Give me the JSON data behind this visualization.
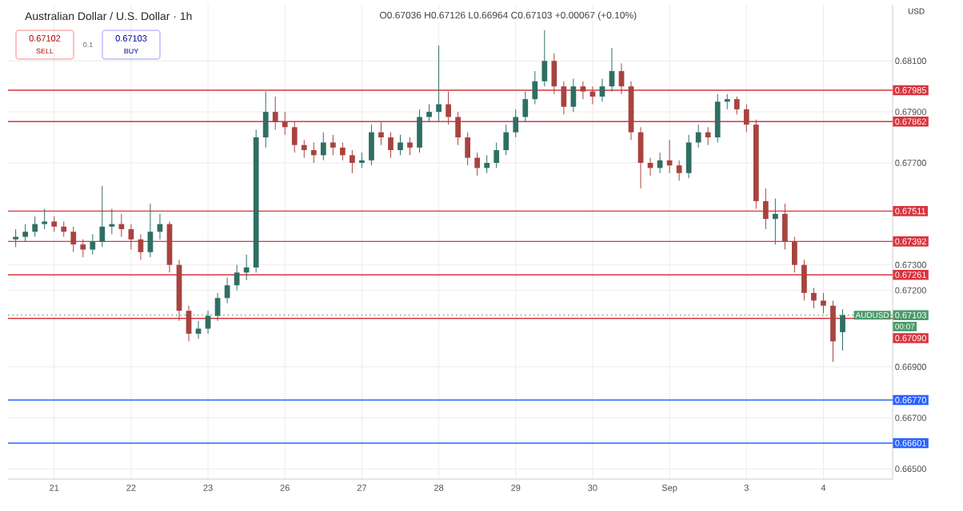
{
  "chart_data": {
    "type": "candlestick",
    "title": "Australian Dollar / U.S. Dollar · 1h",
    "annotations": [
      "O0.67036 H0.67126 L0.66964 C0.67103 +0.00067 (+0.10%)",
      "0.67102",
      "SELL",
      "0.1",
      "0.67103",
      "BUY",
      "USD",
      "AUDUSD",
      "00:07"
    ],
    "categories": [
      null,
      null,
      null,
      null,
      "21",
      null,
      null,
      null,
      null,
      null,
      null,
      null,
      "22",
      null,
      null,
      null,
      null,
      null,
      null,
      null,
      "23",
      null,
      null,
      null,
      null,
      null,
      null,
      null,
      "26",
      null,
      null,
      null,
      null,
      null,
      null,
      null,
      "27",
      null,
      null,
      null,
      null,
      null,
      null,
      null,
      "28",
      null,
      null,
      null,
      null,
      null,
      null,
      null,
      "29",
      null,
      null,
      null,
      null,
      null,
      null,
      null,
      "30",
      null,
      null,
      null,
      null,
      null,
      null,
      null,
      "Sep",
      null,
      null,
      null,
      null,
      null,
      null,
      null,
      "3",
      null,
      null,
      null,
      null,
      null,
      null,
      null,
      "4",
      null,
      null
    ],
    "ohlc": [
      [
        0.674,
        0.6744,
        0.6737,
        0.6741
      ],
      [
        0.6741,
        0.6746,
        0.6739,
        0.6743
      ],
      [
        0.6743,
        0.6749,
        0.6741,
        0.6746
      ],
      [
        0.6746,
        0.6752,
        0.6744,
        0.6747
      ],
      [
        0.6747,
        0.6749,
        0.6743,
        0.6745
      ],
      [
        0.6745,
        0.6747,
        0.6741,
        0.6743
      ],
      [
        0.6743,
        0.6745,
        0.6735,
        0.6738
      ],
      [
        0.6738,
        0.674,
        0.6733,
        0.6736
      ],
      [
        0.6736,
        0.6742,
        0.6734,
        0.6739
      ],
      [
        0.6739,
        0.6761,
        0.6737,
        0.6745
      ],
      [
        0.6745,
        0.6752,
        0.6742,
        0.6746
      ],
      [
        0.6746,
        0.675,
        0.6741,
        0.6744
      ],
      [
        0.6744,
        0.6746,
        0.6736,
        0.674
      ],
      [
        0.674,
        0.6742,
        0.6732,
        0.6735
      ],
      [
        0.6735,
        0.6754,
        0.6733,
        0.6743
      ],
      [
        0.6743,
        0.675,
        0.674,
        0.6746
      ],
      [
        0.6746,
        0.6747,
        0.6727,
        0.673
      ],
      [
        0.673,
        0.6732,
        0.6708,
        0.6712
      ],
      [
        0.6712,
        0.6714,
        0.67,
        0.6703
      ],
      [
        0.6703,
        0.6708,
        0.6701,
        0.6705
      ],
      [
        0.6705,
        0.6712,
        0.6703,
        0.671
      ],
      [
        0.671,
        0.6719,
        0.6708,
        0.6717
      ],
      [
        0.6717,
        0.6725,
        0.6715,
        0.6722
      ],
      [
        0.6722,
        0.673,
        0.672,
        0.6727
      ],
      [
        0.6727,
        0.6734,
        0.6724,
        0.6729
      ],
      [
        0.6729,
        0.6783,
        0.6727,
        0.678
      ],
      [
        0.678,
        0.6798,
        0.6776,
        0.679
      ],
      [
        0.679,
        0.6796,
        0.6783,
        0.6786
      ],
      [
        0.6786,
        0.679,
        0.6781,
        0.6784
      ],
      [
        0.6784,
        0.6786,
        0.6774,
        0.6777
      ],
      [
        0.6777,
        0.6779,
        0.6772,
        0.6775
      ],
      [
        0.6775,
        0.6778,
        0.677,
        0.6773
      ],
      [
        0.6773,
        0.6782,
        0.6771,
        0.6778
      ],
      [
        0.6778,
        0.6781,
        0.6773,
        0.6776
      ],
      [
        0.6776,
        0.6778,
        0.6771,
        0.6773
      ],
      [
        0.6773,
        0.6775,
        0.6766,
        0.677
      ],
      [
        0.677,
        0.6774,
        0.6768,
        0.6771
      ],
      [
        0.6771,
        0.6785,
        0.6769,
        0.6782
      ],
      [
        0.6782,
        0.6786,
        0.6777,
        0.678
      ],
      [
        0.678,
        0.6782,
        0.6772,
        0.6775
      ],
      [
        0.6775,
        0.6781,
        0.6773,
        0.6778
      ],
      [
        0.6778,
        0.678,
        0.6773,
        0.6776
      ],
      [
        0.6776,
        0.6791,
        0.6774,
        0.6788
      ],
      [
        0.6788,
        0.6793,
        0.6786,
        0.679
      ],
      [
        0.679,
        0.6816,
        0.6786,
        0.6793
      ],
      [
        0.6793,
        0.6798,
        0.6785,
        0.6788
      ],
      [
        0.6788,
        0.679,
        0.6777,
        0.678
      ],
      [
        0.678,
        0.6782,
        0.6769,
        0.6772
      ],
      [
        0.6772,
        0.6774,
        0.6765,
        0.6768
      ],
      [
        0.6768,
        0.6773,
        0.6766,
        0.677
      ],
      [
        0.677,
        0.6778,
        0.6768,
        0.6775
      ],
      [
        0.6775,
        0.6785,
        0.6773,
        0.6782
      ],
      [
        0.6782,
        0.6791,
        0.678,
        0.6788
      ],
      [
        0.6788,
        0.6798,
        0.6786,
        0.6795
      ],
      [
        0.6795,
        0.6806,
        0.6793,
        0.6802
      ],
      [
        0.6802,
        0.6822,
        0.68,
        0.681
      ],
      [
        0.681,
        0.6813,
        0.6797,
        0.68
      ],
      [
        0.68,
        0.6802,
        0.6789,
        0.6792
      ],
      [
        0.6792,
        0.6803,
        0.679,
        0.68
      ],
      [
        0.68,
        0.6802,
        0.6795,
        0.6798
      ],
      [
        0.6798,
        0.68,
        0.6793,
        0.6796
      ],
      [
        0.6796,
        0.6803,
        0.6794,
        0.68
      ],
      [
        0.68,
        0.6815,
        0.6798,
        0.6806
      ],
      [
        0.6806,
        0.6809,
        0.6797,
        0.68
      ],
      [
        0.68,
        0.6802,
        0.6779,
        0.6782
      ],
      [
        0.6782,
        0.6784,
        0.676,
        0.677
      ],
      [
        0.677,
        0.6772,
        0.6765,
        0.6768
      ],
      [
        0.6768,
        0.6774,
        0.6766,
        0.6771
      ],
      [
        0.6771,
        0.6779,
        0.6766,
        0.6769
      ],
      [
        0.6769,
        0.6771,
        0.6763,
        0.6766
      ],
      [
        0.6766,
        0.6781,
        0.6764,
        0.6778
      ],
      [
        0.6778,
        0.6785,
        0.6776,
        0.6782
      ],
      [
        0.6782,
        0.6784,
        0.6777,
        0.678
      ],
      [
        0.678,
        0.6797,
        0.6778,
        0.6794
      ],
      [
        0.6794,
        0.6797,
        0.6791,
        0.6795
      ],
      [
        0.6795,
        0.6796,
        0.6789,
        0.6791
      ],
      [
        0.6791,
        0.6793,
        0.6782,
        0.6785
      ],
      [
        0.6785,
        0.6787,
        0.6752,
        0.6755
      ],
      [
        0.6755,
        0.676,
        0.6744,
        0.6748
      ],
      [
        0.6748,
        0.6756,
        0.6738,
        0.675
      ],
      [
        0.675,
        0.6754,
        0.6736,
        0.6739
      ],
      [
        0.6739,
        0.6741,
        0.6727,
        0.673
      ],
      [
        0.673,
        0.6732,
        0.6716,
        0.6719
      ],
      [
        0.6719,
        0.6721,
        0.6713,
        0.6716
      ],
      [
        0.6716,
        0.6719,
        0.6711,
        0.6714
      ],
      [
        0.6714,
        0.6716,
        0.6692,
        0.67
      ],
      [
        0.67036,
        0.67126,
        0.66964,
        0.67103
      ]
    ],
    "ylim": [
      0.6646,
      0.6832
    ],
    "yticks": [
      {
        "value": 0.665,
        "label": "0.66500"
      },
      {
        "value": 0.667,
        "label": "0.66700"
      },
      {
        "value": 0.669,
        "label": "0.66900"
      },
      {
        "value": 0.672,
        "label": "0.67200"
      },
      {
        "value": 0.673,
        "label": "0.67300"
      },
      {
        "value": 0.677,
        "label": "0.67700"
      },
      {
        "value": 0.679,
        "label": "0.67900"
      },
      {
        "value": 0.681,
        "label": "0.68100"
      }
    ],
    "ref_lines": [
      {
        "axis": "y",
        "value": 0.67985,
        "label": "0.67985",
        "color": "#d9343f"
      },
      {
        "axis": "y",
        "value": 0.67862,
        "label": "0.67862",
        "color": "#d9343f"
      },
      {
        "axis": "y",
        "value": 0.67511,
        "label": "0.67511",
        "color": "#d9343f"
      },
      {
        "axis": "y",
        "value": 0.67392,
        "label": "0.67392",
        "color": "#d9343f"
      },
      {
        "axis": "y",
        "value": 0.67261,
        "label": "0.67261",
        "color": "#d9343f"
      },
      {
        "axis": "y",
        "value": 0.67103,
        "label": "0.67103",
        "color": "#4c9a6a",
        "line_style": "dotted"
      },
      {
        "axis": "y",
        "value": 0.6709,
        "label": "0.67090",
        "color": "#d9343f"
      },
      {
        "axis": "y",
        "value": 0.6677,
        "label": "0.66770",
        "color": "#2962ff"
      },
      {
        "axis": "y",
        "value": 0.66601,
        "label": "0.66601",
        "color": "#2962ff"
      }
    ],
    "grid": true
  }
}
